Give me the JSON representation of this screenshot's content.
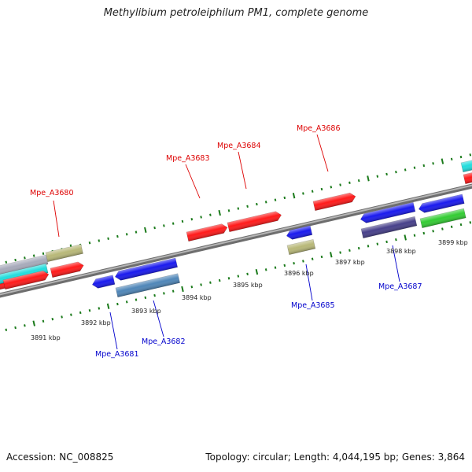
{
  "title": "Methylibium petroleiphilum PM1, complete genome",
  "footer": {
    "accession": "Accession: NC_008825",
    "summary": "Topology: circular; Length: 4,044,195 bp; Genes: 3,864"
  },
  "colors": {
    "forward_label": "#dd0000",
    "reverse_label": "#0000cc",
    "backbone": "#8a8a8a",
    "tick": "#1a7a1a",
    "red_gene": "#ff1a1a",
    "blue_gene": "#1a1aee",
    "olive_gene": "#b8b878",
    "cyan_gene": "#22dddd",
    "steel_gene": "#4f86b8",
    "purple_gene": "#47408a",
    "green_gene": "#33cc33",
    "grey_gene": "#a7aaba"
  },
  "scale_labels": [
    "3891 kbp",
    "3892 kbp",
    "3893 kbp",
    "3894 kbp",
    "3895 kbp",
    "3896 kbp",
    "3897 kbp",
    "3898 kbp",
    "3899 kbp"
  ],
  "gene_labels": {
    "forward": [
      "Mpe_A3680",
      "Mpe_A3683",
      "Mpe_A3684",
      "Mpe_A3686"
    ],
    "reverse": [
      "Mpe_A3681",
      "Mpe_A3682",
      "Mpe_A3685",
      "Mpe_A3687"
    ]
  }
}
